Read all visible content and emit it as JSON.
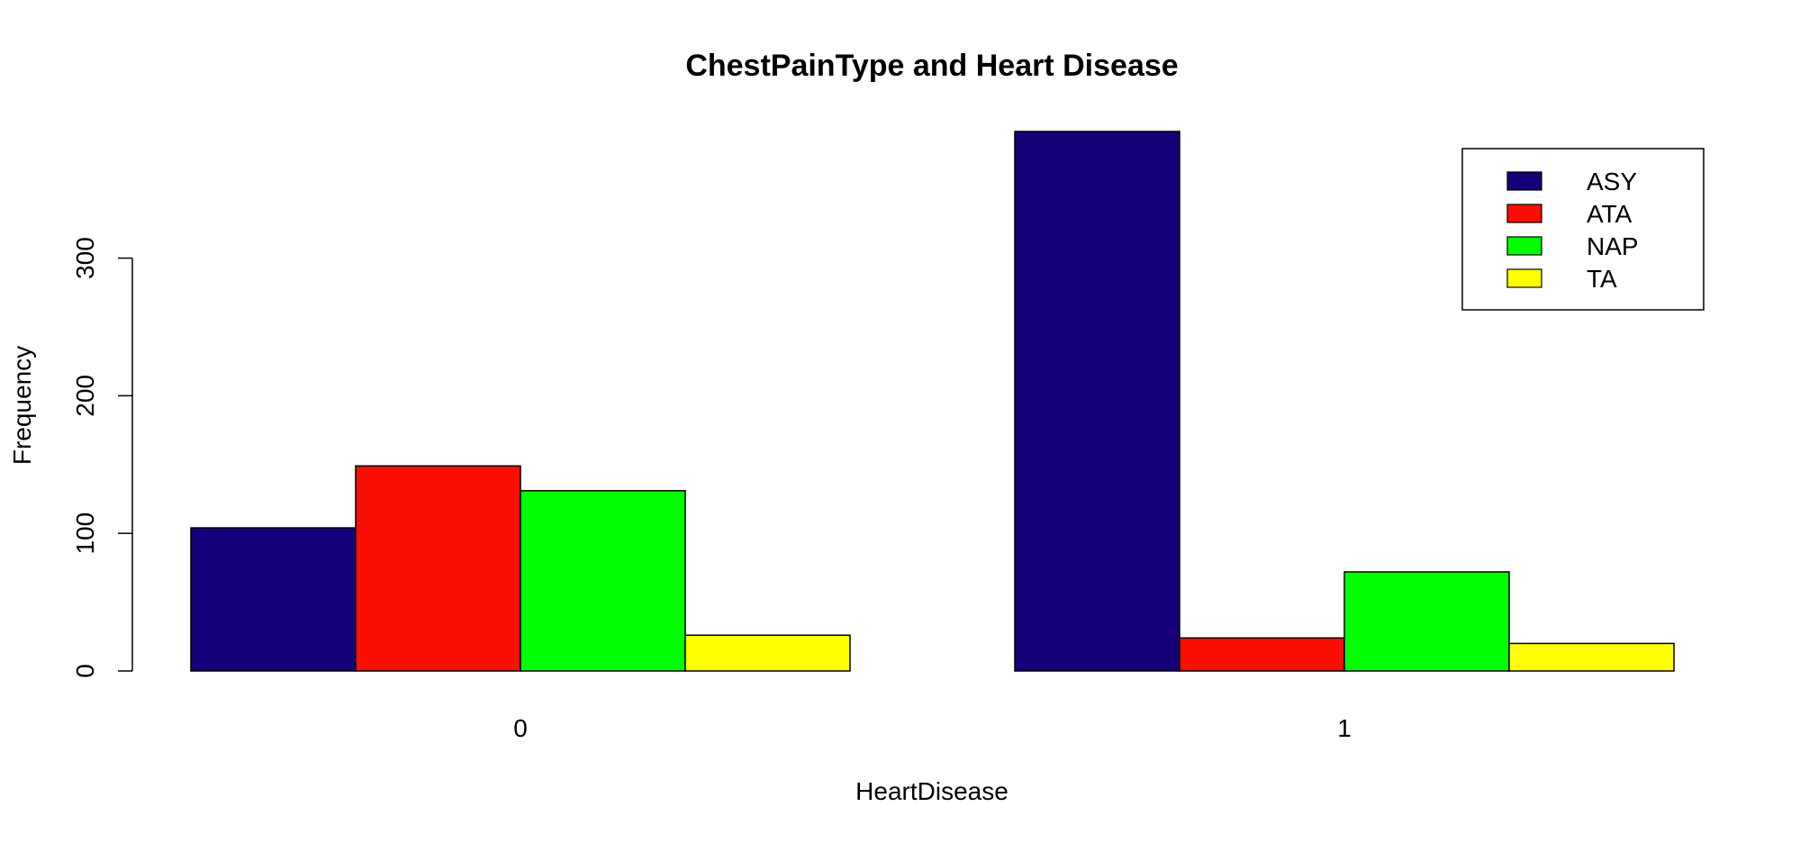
{
  "chart_data": {
    "type": "bar",
    "title": "ChestPainType and Heart Disease",
    "xlabel": "HeartDisease",
    "ylabel": "Frequency",
    "categories": [
      "0",
      "1"
    ],
    "series": [
      {
        "name": "ASY",
        "color": "#150079",
        "values": [
          104,
          392
        ]
      },
      {
        "name": "ATA",
        "color": "#f90f05",
        "values": [
          149,
          24
        ]
      },
      {
        "name": "NAP",
        "color": "#00ff00",
        "values": [
          131,
          72
        ]
      },
      {
        "name": "TA",
        "color": "#ffff00",
        "values": [
          26,
          20
        ]
      }
    ],
    "yticks": [
      0,
      100,
      200,
      300
    ],
    "ylim": [
      0,
      392
    ],
    "grid": false,
    "legend_position": "top-right",
    "grouped": true
  }
}
